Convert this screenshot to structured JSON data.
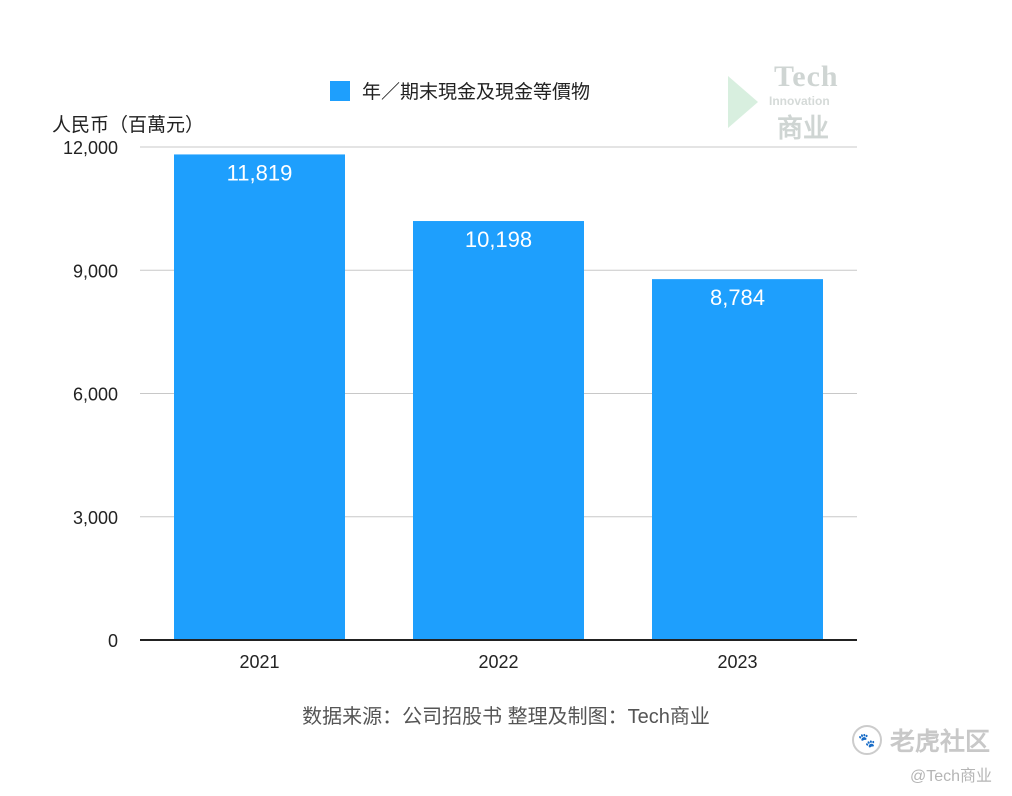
{
  "chart_data": {
    "type": "bar",
    "categories": [
      "2021",
      "2022",
      "2023"
    ],
    "series": [
      {
        "name": "年／期末現金及現金等價物",
        "values": [
          11819,
          10198,
          8784
        ],
        "color": "#1e9ffd"
      }
    ],
    "data_labels": [
      "11,819",
      "10,198",
      "8,784"
    ],
    "ylabel": "人民币（百萬元）",
    "yticks": [
      0,
      3000,
      6000,
      9000,
      12000
    ],
    "ytick_labels": [
      "0",
      "3,000",
      "6,000",
      "9,000",
      "12,000"
    ],
    "ylim": [
      0,
      12000
    ],
    "grid": true,
    "legend_position": "top-center",
    "bar_label_color": "#ffffff"
  },
  "source_note": "数据来源：公司招股书  整理及制图：Tech商业",
  "logo": {
    "line1": "Tech",
    "line2": "Innovation",
    "line3": "商业"
  },
  "watermark": {
    "icon": "paw-icon",
    "text": "老虎社区",
    "handle": "@Tech商业"
  }
}
